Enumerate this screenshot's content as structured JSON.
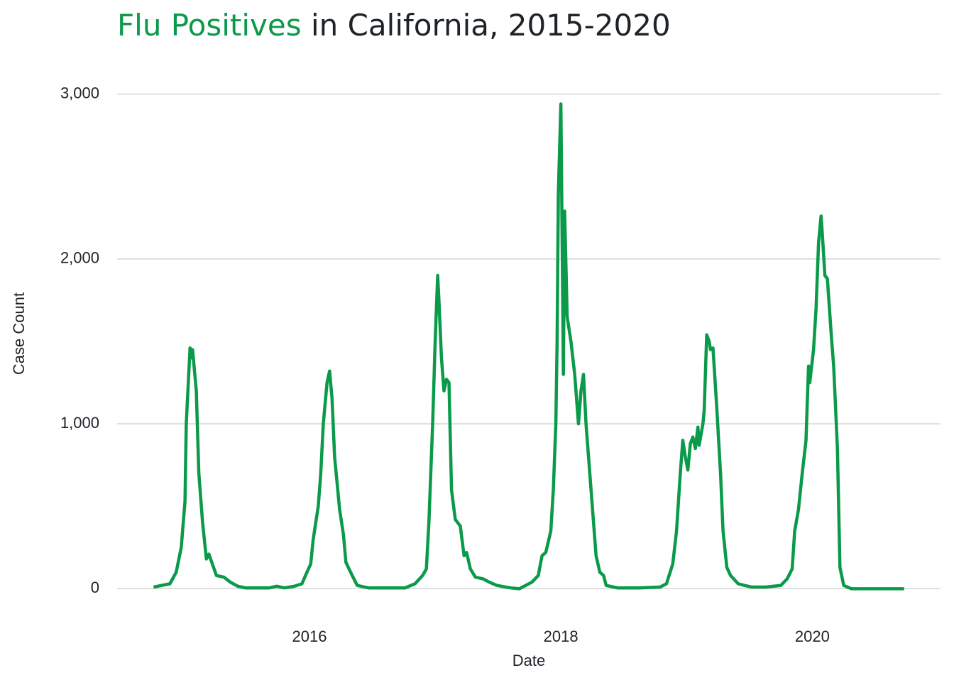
{
  "chart_data": {
    "type": "line",
    "title": {
      "highlight": "Flu Positives",
      "rest": "in California, 2015-2020"
    },
    "x_label": "Date",
    "y_label": "Case Count",
    "xlim": [
      2014.47,
      2021.02
    ],
    "xticks": [
      2016,
      2018,
      2020
    ],
    "ylim": [
      -175,
      3140
    ],
    "yticks": [
      0,
      {
        "value": 1000,
        "label": "1,000"
      },
      {
        "value": 2000,
        "label": "2,000"
      },
      {
        "value": 3000,
        "label": "3,000"
      }
    ],
    "grid": true,
    "highlight_color": "#0a9a4a",
    "series": [
      {
        "color": "#0a9a4a",
        "x": [
          2014.76,
          2014.89,
          2014.94,
          2014.98,
          2015.01,
          2015.02,
          2015.05,
          2015.06,
          2015.07,
          2015.1,
          2015.12,
          2015.15,
          2015.18,
          2015.2,
          2015.26,
          2015.32,
          2015.37,
          2015.43,
          2015.49,
          2015.68,
          2015.74,
          2015.8,
          2015.88,
          2015.94,
          2015.98,
          2016.01,
          2016.03,
          2016.07,
          2016.09,
          2016.11,
          2016.14,
          2016.16,
          2016.18,
          2016.2,
          2016.24,
          2016.27,
          2016.29,
          2016.34,
          2016.38,
          2016.47,
          2016.59,
          2016.76,
          2016.84,
          2016.9,
          2016.93,
          2016.95,
          2016.98,
          2017.0,
          2017.02,
          2017.03,
          2017.05,
          2017.07,
          2017.09,
          2017.11,
          2017.13,
          2017.16,
          2017.2,
          2017.23,
          2017.25,
          2017.28,
          2017.32,
          2017.38,
          2017.43,
          2017.49,
          2017.6,
          2017.67,
          2017.72,
          2017.77,
          2017.82,
          2017.85,
          2017.88,
          2017.92,
          2017.94,
          2017.96,
          2017.97,
          2017.98,
          2018.0,
          2018.02,
          2018.03,
          2018.05,
          2018.08,
          2018.11,
          2018.14,
          2018.16,
          2018.18,
          2018.2,
          2018.22,
          2018.25,
          2018.28,
          2018.31,
          2018.34,
          2018.36,
          2018.45,
          2018.62,
          2018.79,
          2018.84,
          2018.89,
          2018.92,
          2018.95,
          2018.97,
          2018.99,
          2019.01,
          2019.03,
          2019.05,
          2019.07,
          2019.09,
          2019.1,
          2019.13,
          2019.14,
          2019.16,
          2019.18,
          2019.19,
          2019.21,
          2019.24,
          2019.27,
          2019.29,
          2019.32,
          2019.35,
          2019.41,
          2019.46,
          2019.52,
          2019.63,
          2019.75,
          2019.8,
          2019.84,
          2019.86,
          2019.89,
          2019.92,
          2019.95,
          2019.97,
          2019.98,
          2020.01,
          2020.03,
          2020.05,
          2020.07,
          2020.08,
          2020.1,
          2020.12,
          2020.15,
          2020.17,
          2020.2,
          2020.22,
          2020.25,
          2020.31,
          2020.73
        ],
        "values": [
          10,
          30,
          100,
          250,
          530,
          1000,
          1460,
          1400,
          1450,
          1200,
          700,
          400,
          180,
          210,
          80,
          70,
          40,
          15,
          5,
          5,
          15,
          5,
          15,
          30,
          100,
          150,
          300,
          500,
          700,
          1000,
          1250,
          1320,
          1150,
          800,
          480,
          330,
          160,
          80,
          20,
          5,
          5,
          5,
          30,
          80,
          120,
          400,
          1000,
          1500,
          1900,
          1750,
          1400,
          1200,
          1270,
          1250,
          600,
          420,
          380,
          200,
          220,
          120,
          70,
          60,
          40,
          20,
          5,
          0,
          20,
          40,
          80,
          200,
          220,
          350,
          600,
          1000,
          1500,
          2400,
          2940,
          1300,
          2290,
          1650,
          1500,
          1300,
          1000,
          1200,
          1300,
          1000,
          800,
          500,
          200,
          100,
          80,
          20,
          5,
          5,
          10,
          30,
          150,
          350,
          700,
          900,
          800,
          720,
          880,
          920,
          850,
          980,
          870,
          1000,
          1080,
          1540,
          1500,
          1450,
          1460,
          1100,
          700,
          350,
          130,
          80,
          30,
          20,
          10,
          10,
          20,
          60,
          120,
          350,
          480,
          700,
          900,
          1350,
          1250,
          1450,
          1700,
          2100,
          2260,
          2150,
          1900,
          1880,
          1550,
          1350,
          850,
          130,
          20,
          0,
          0
        ]
      }
    ]
  }
}
